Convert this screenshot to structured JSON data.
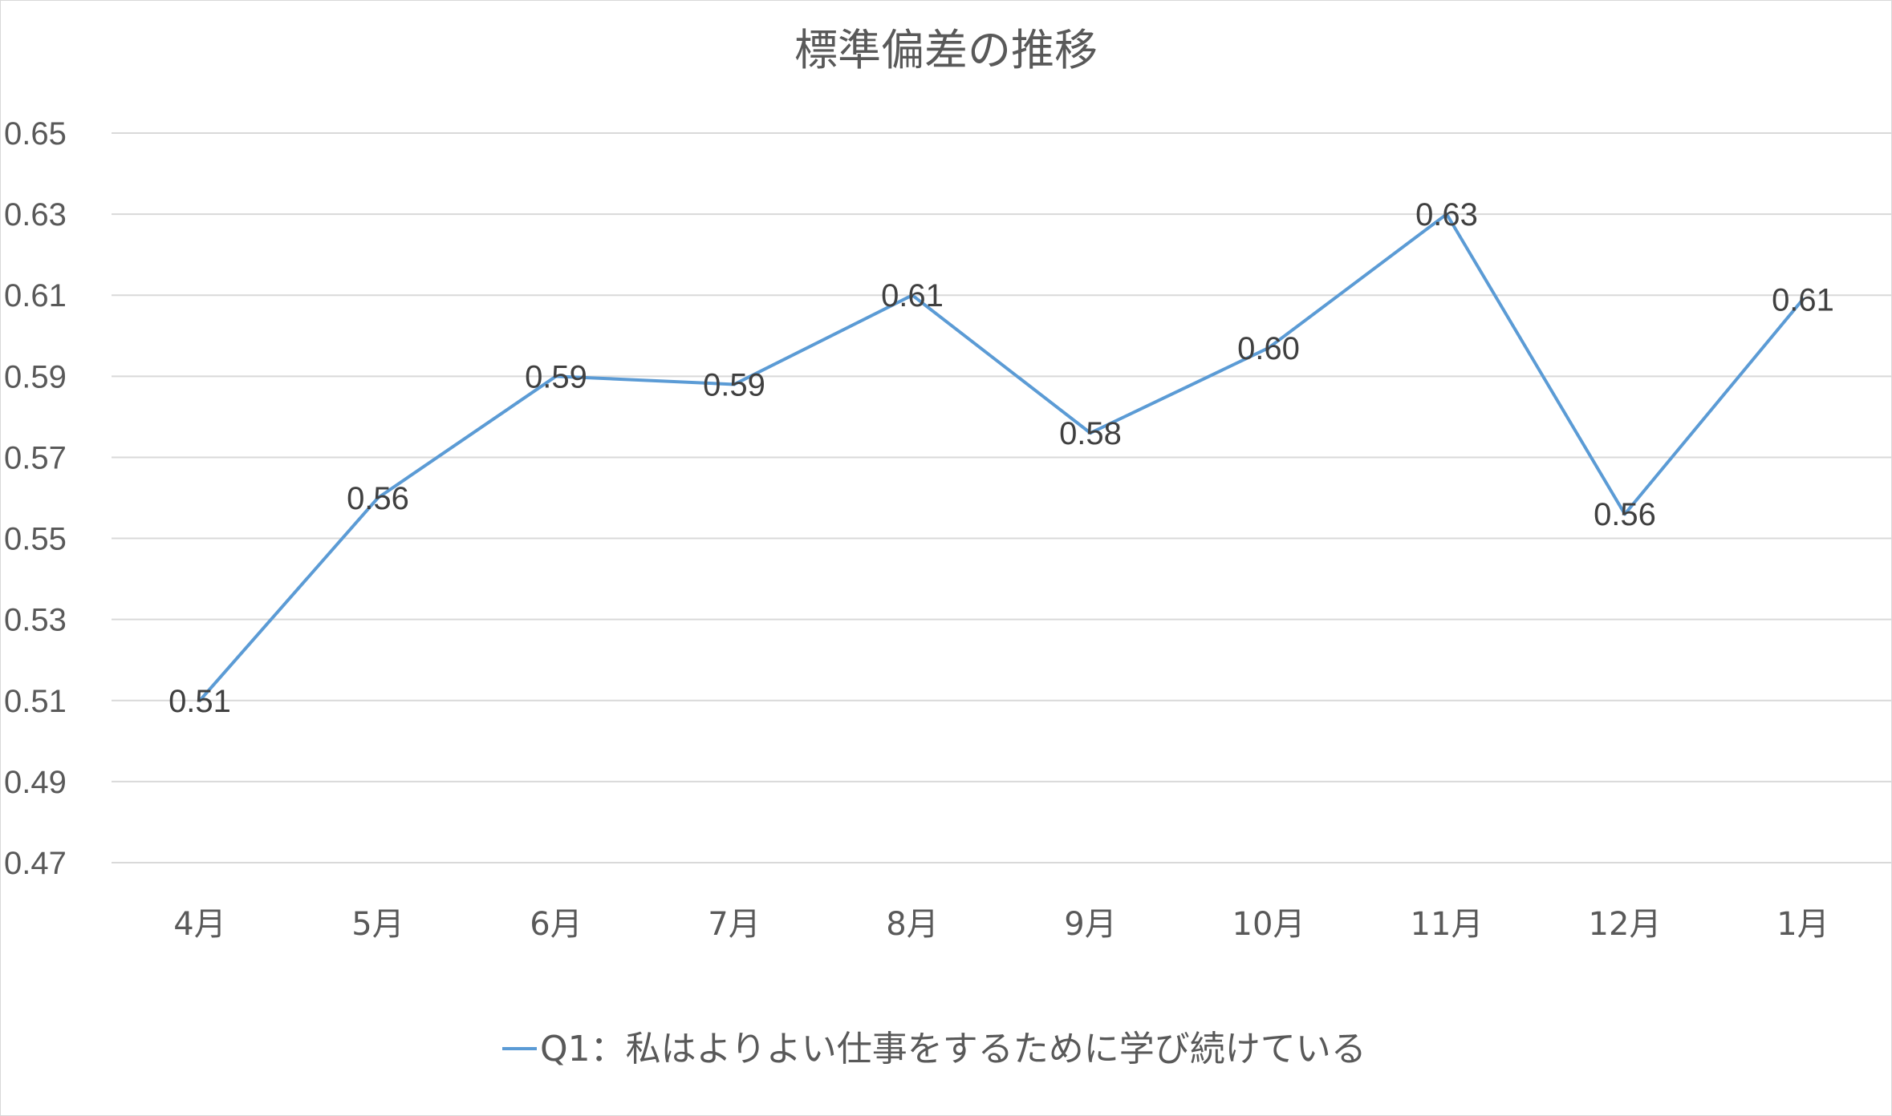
{
  "chart_data": {
    "type": "line",
    "title": "標準偏差の推移",
    "categories": [
      "4月",
      "5月",
      "6月",
      "7月",
      "8月",
      "9月",
      "10月",
      "11月",
      "12月",
      "1月"
    ],
    "series": [
      {
        "name": "Q1：私はよりよい仕事をするために学び続けている",
        "values": [
          0.51,
          0.56,
          0.59,
          0.588,
          0.61,
          0.576,
          0.597,
          0.63,
          0.556,
          0.609
        ],
        "labels": [
          "0.51",
          "0.56",
          "0.59",
          "0.59",
          "0.61",
          "0.58",
          "0.60",
          "0.63",
          "0.56",
          "0.61"
        ],
        "color": "#5b9bd5"
      }
    ],
    "ylim": [
      0.47,
      0.65
    ],
    "yticks": [
      "0.65",
      "0.63",
      "0.61",
      "0.59",
      "0.57",
      "0.55",
      "0.53",
      "0.51",
      "0.49",
      "0.47"
    ],
    "grid": true,
    "legend_position": "bottom"
  }
}
